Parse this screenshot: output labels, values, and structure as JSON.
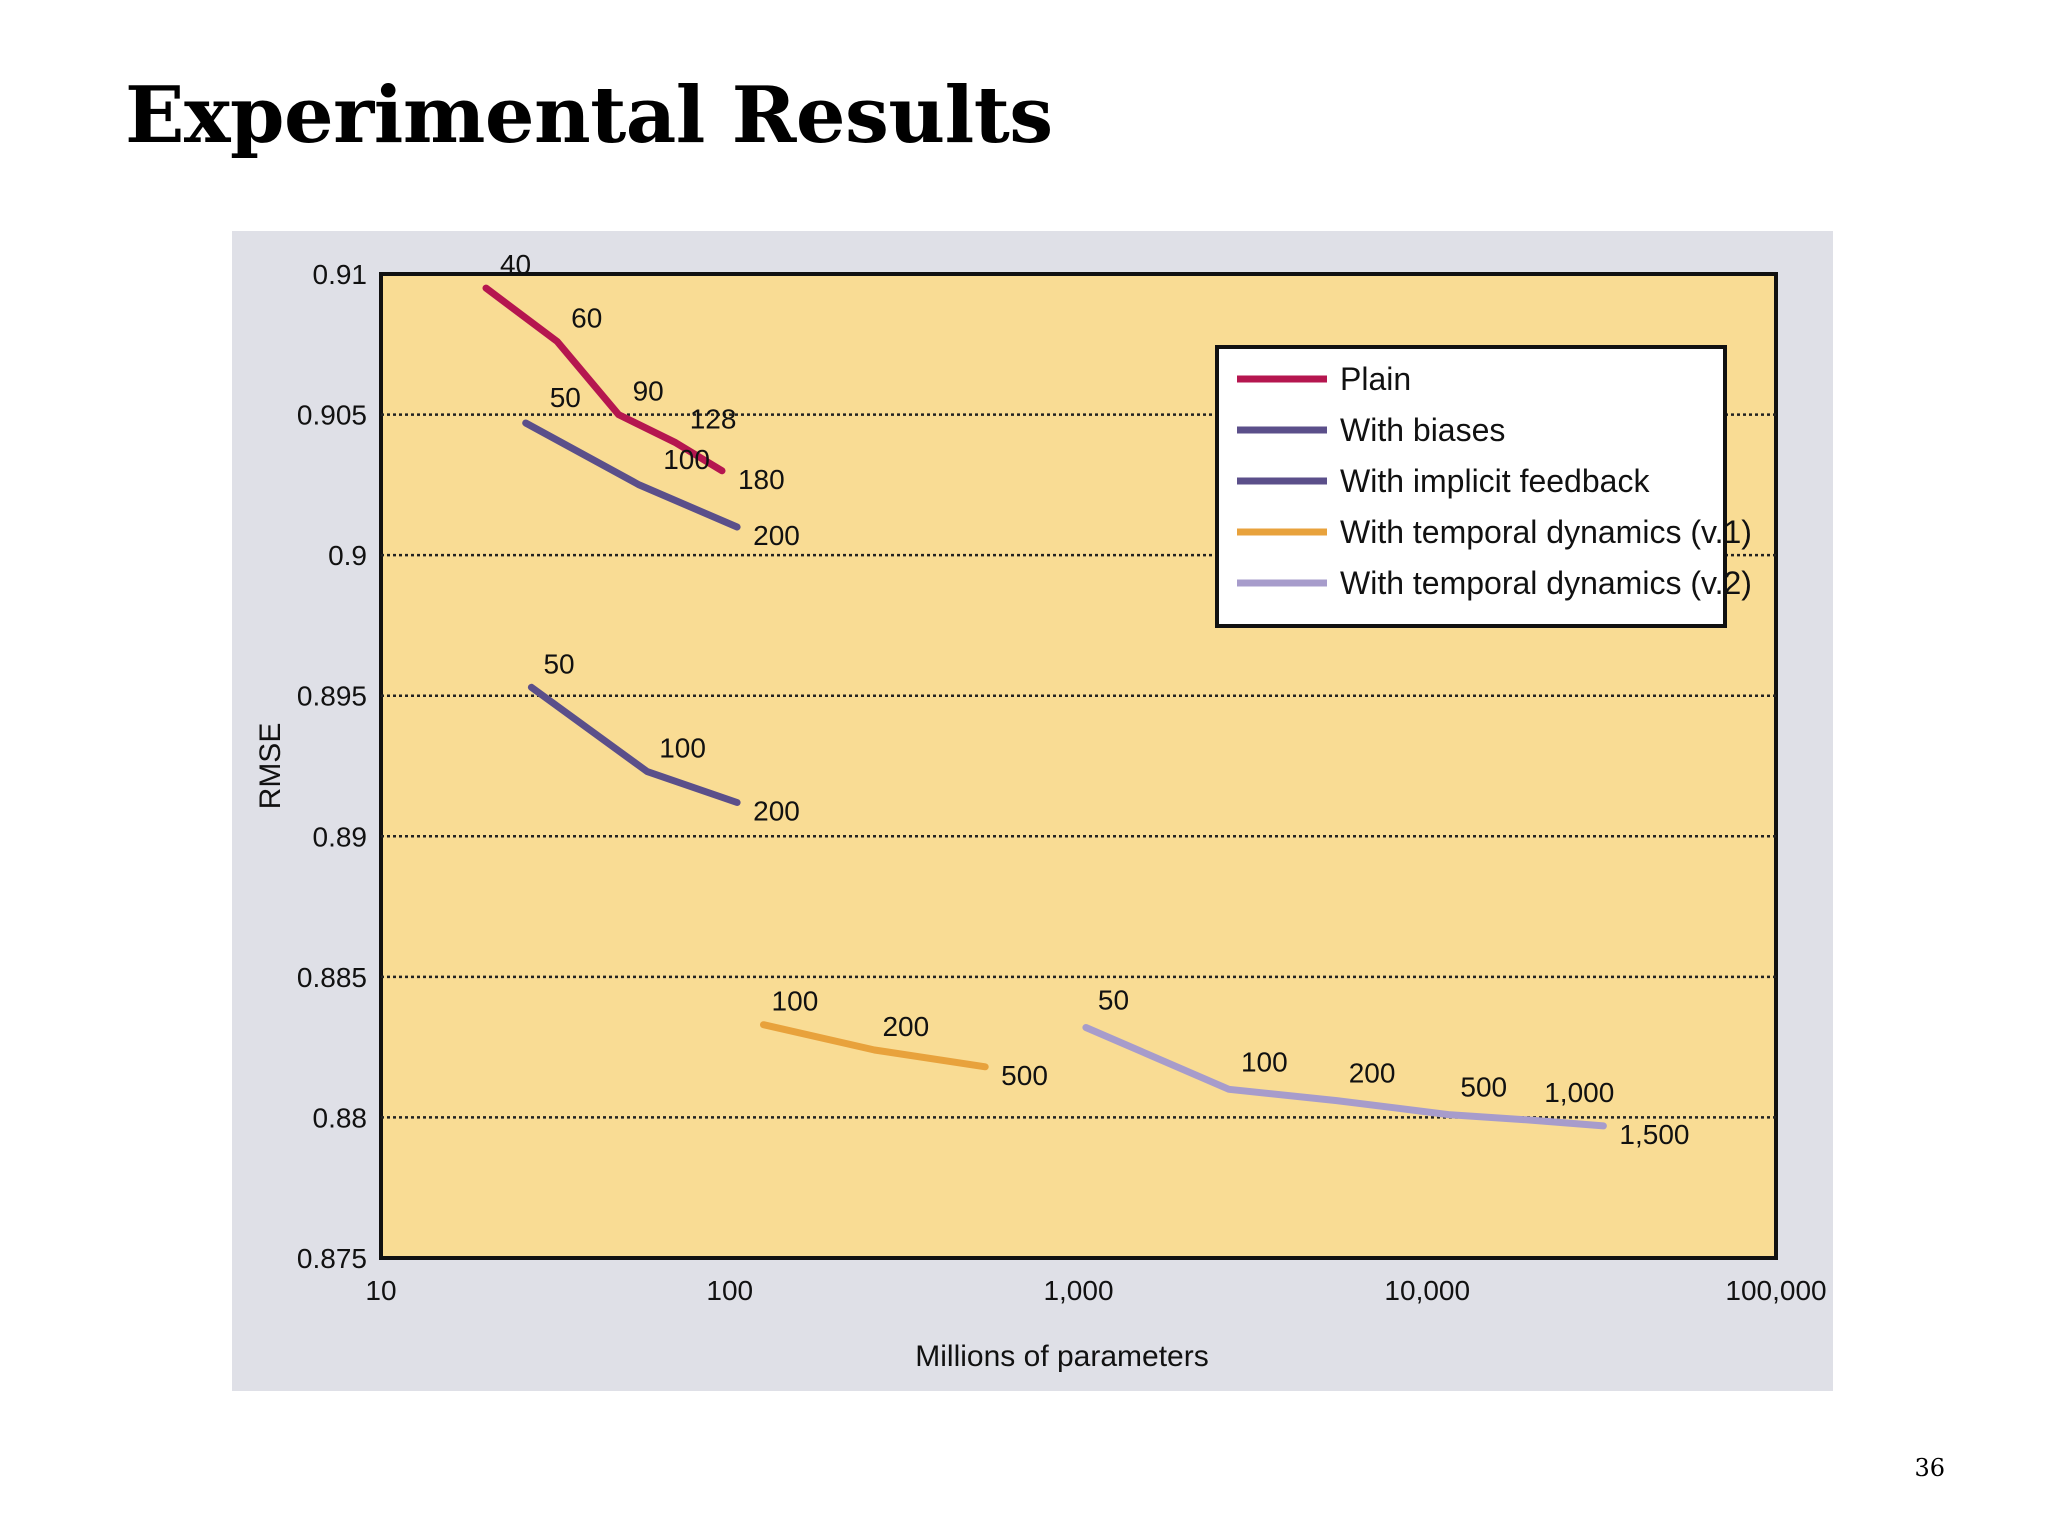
{
  "slide": {
    "title": "Experimental Results",
    "page_number": "36"
  },
  "chart_data": {
    "type": "line",
    "xlabel": "Millions of parameters",
    "ylabel": "RMSE",
    "x_scale": "log",
    "xlim": [
      10,
      100000
    ],
    "ylim": [
      0.875,
      0.91
    ],
    "x_ticks": [
      10,
      100,
      1000,
      10000,
      100000
    ],
    "x_tick_labels": [
      "10",
      "100",
      "1,000",
      "10,000",
      "100,000"
    ],
    "y_ticks": [
      0.875,
      0.88,
      0.885,
      0.89,
      0.895,
      0.9,
      0.905,
      0.91
    ],
    "y_tick_labels": [
      "0.875",
      "0.88",
      "0.885",
      "0.89",
      "0.895",
      "0.9",
      "0.905",
      "0.91"
    ],
    "grid": "horizontal dotted",
    "legend_position": "top-right",
    "background": "#f9dc94",
    "frame_background": "#dfe0e7",
    "series": [
      {
        "name": "Plain",
        "color": "#b5164f",
        "points": [
          {
            "x": 20,
            "y": 0.9095,
            "label": "40"
          },
          {
            "x": 32,
            "y": 0.9076,
            "label": "60"
          },
          {
            "x": 48,
            "y": 0.905,
            "label": "90"
          },
          {
            "x": 70,
            "y": 0.904,
            "label": "128"
          },
          {
            "x": 95,
            "y": 0.903,
            "label": "180"
          }
        ]
      },
      {
        "name": "With biases",
        "color": "#5b4f8a",
        "points": [
          {
            "x": 26,
            "y": 0.9047,
            "label": "50"
          },
          {
            "x": 55,
            "y": 0.9025,
            "label": "100"
          },
          {
            "x": 105,
            "y": 0.901,
            "label": "200"
          }
        ]
      },
      {
        "name": "With implicit feedback",
        "color": "#5b4f8a",
        "points": [
          {
            "x": 27,
            "y": 0.8953,
            "label": "50"
          },
          {
            "x": 58,
            "y": 0.8923,
            "label": "100"
          },
          {
            "x": 105,
            "y": 0.8912,
            "label": "200"
          }
        ]
      },
      {
        "name": "With temporal dynamics (v.1)",
        "color": "#e8a23c",
        "points": [
          {
            "x": 125,
            "y": 0.8833,
            "label": "100"
          },
          {
            "x": 260,
            "y": 0.8824,
            "label": "200"
          },
          {
            "x": 540,
            "y": 0.8818,
            "label": "500"
          }
        ]
      },
      {
        "name": "With temporal dynamics (v.2)",
        "color": "#a79ccb",
        "points": [
          {
            "x": 1050,
            "y": 0.8832,
            "label": "50"
          },
          {
            "x": 2700,
            "y": 0.881,
            "label": "100"
          },
          {
            "x": 5500,
            "y": 0.8806,
            "label": "200"
          },
          {
            "x": 11500,
            "y": 0.8801,
            "label": "500"
          },
          {
            "x": 20000,
            "y": 0.8799,
            "label": "1,000"
          },
          {
            "x": 32000,
            "y": 0.8797,
            "label": "1,500"
          }
        ]
      }
    ]
  }
}
